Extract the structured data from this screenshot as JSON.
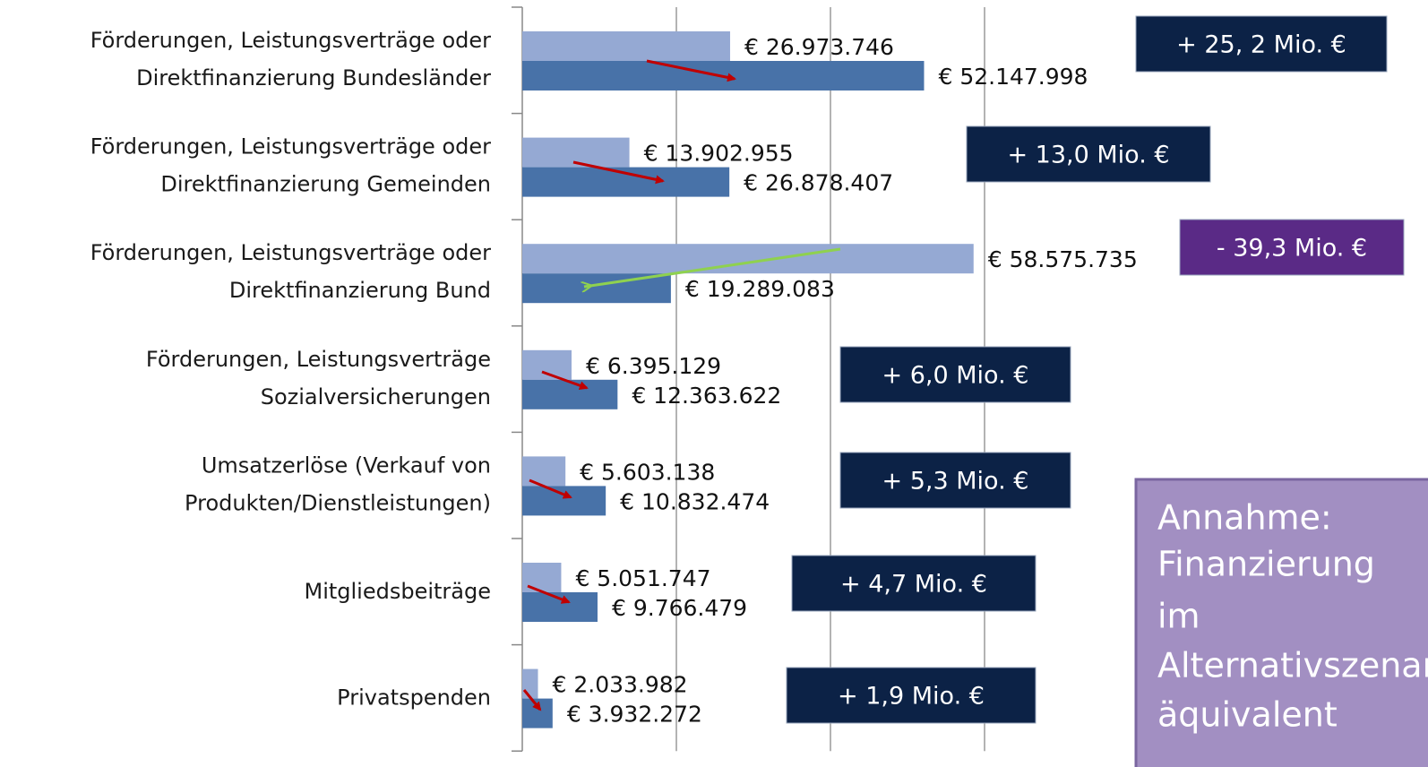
{
  "chart_data": {
    "type": "bar",
    "orientation": "horizontal",
    "categories": [
      [
        "Förderungen, Leistungsverträge oder",
        "Direktfinanzierung Bundesländer"
      ],
      [
        "Förderungen, Leistungsverträge oder",
        "Direktfinanzierung Gemeinden"
      ],
      [
        "Förderungen, Leistungsverträge oder",
        "Direktfinanzierung Bund"
      ],
      [
        "Förderungen, Leistungsverträge",
        "Sozialversicherungen"
      ],
      [
        "Umsatzerlöse (Verkauf von",
        "Produkten/Dienstleistungen)"
      ],
      [
        "Mitgliedsbeiträge"
      ],
      [
        "Privatspenden"
      ]
    ],
    "series": [
      {
        "color": "#95a9d3",
        "values": [
          26973746,
          13902955,
          58575735,
          6395129,
          5603138,
          5051747,
          2033982
        ],
        "value_labels": [
          "€ 26.973.746",
          "€ 13.902.955",
          "€ 58.575.735",
          "€ 6.395.129",
          "€ 5.603.138",
          "€ 5.051.747",
          "€ 2.033.982"
        ]
      },
      {
        "color": "#4872a8",
        "values": [
          52147998,
          26878407,
          19289083,
          12363622,
          10832474,
          9766479,
          3932272
        ],
        "value_labels": [
          "€ 52.147.998",
          "€ 26.878.407",
          "€ 19.289.083",
          "€ 12.363.622",
          "€ 10.832.474",
          "€ 9.766.479",
          "€ 3.932.272"
        ]
      }
    ],
    "xlim": [
      0,
      60000000
    ],
    "xticks": [
      0,
      20000000,
      40000000,
      60000000
    ],
    "grid": true,
    "annotations": [
      {
        "text": "+ 25, 2 Mio. €",
        "color": "#0c2246"
      },
      {
        "text": "+ 13,0 Mio. €",
        "color": "#0c2246"
      },
      {
        "text": "- 39,3 Mio. €",
        "color": "#5a2a86"
      },
      {
        "text": "+ 6,0 Mio. €",
        "color": "#0c2246"
      },
      {
        "text": "+ 5,3 Mio. €",
        "color": "#0c2246"
      },
      {
        "text": "+ 4,7 Mio. €",
        "color": "#0c2246"
      },
      {
        "text": "+ 1,9 Mio. €",
        "color": "#0c2246"
      }
    ],
    "callout": {
      "lines": [
        "Annahme:",
        "Finanzierung",
        "im",
        "Alternativszenario",
        "äquivalent"
      ],
      "color": "#a28fc2"
    }
  }
}
